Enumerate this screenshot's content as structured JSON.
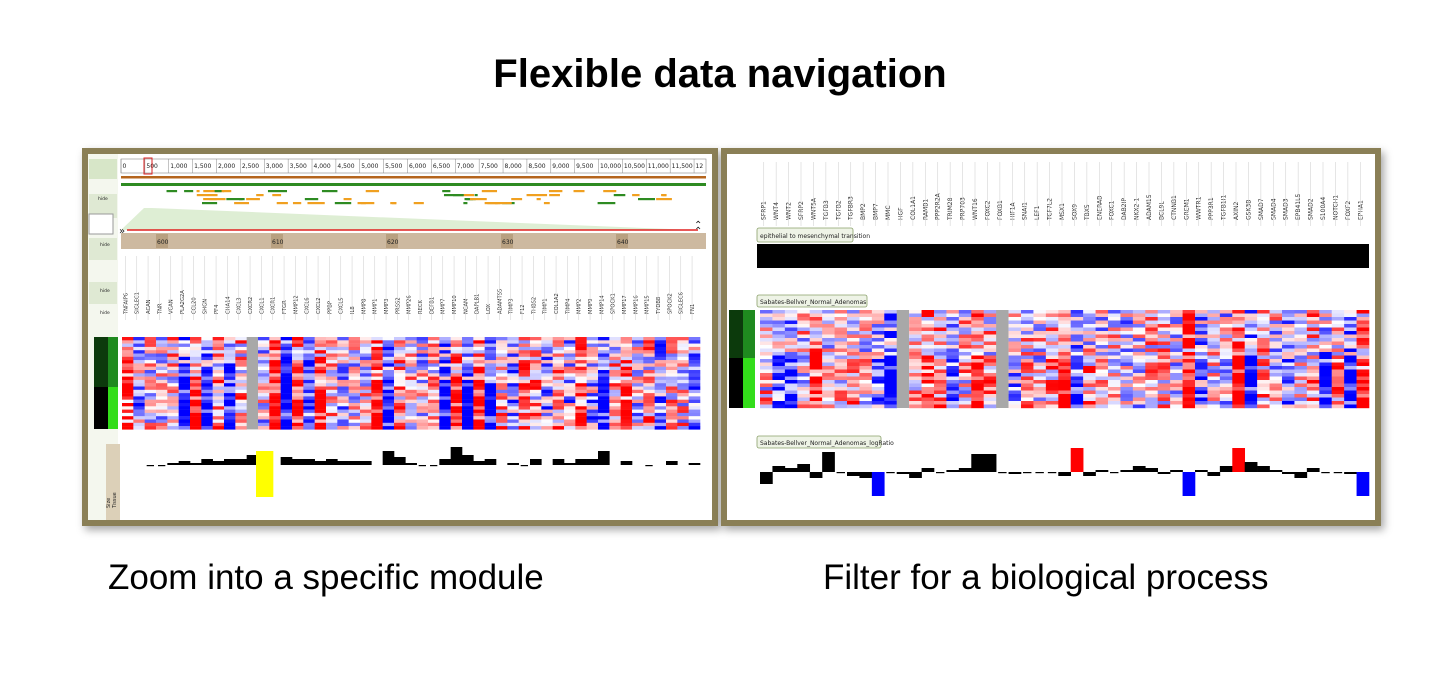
{
  "slide": {
    "title": "Flexible data navigation",
    "left_caption": "Zoom into a specific module",
    "right_caption": "Filter for a biological process"
  },
  "left_panel": {
    "ruler_ticks": [
      "0",
      "500",
      "1,000",
      "1,500",
      "2,000",
      "2,500",
      "3,000",
      "3,500",
      "4,000",
      "4,500",
      "5,000",
      "5,500",
      "6,000",
      "6,500",
      "7,000",
      "7,500",
      "8,000",
      "8,500",
      "9,000",
      "9,500",
      "10,000",
      "10,500",
      "11,000",
      "11,500",
      "12"
    ],
    "zoom_ticks": [
      "600",
      "610",
      "620",
      "630",
      "640"
    ],
    "side_labels": [
      "hide",
      "hide",
      "hide",
      "hide"
    ],
    "bottom_labels": [
      "Tissue",
      "Size"
    ],
    "genes": [
      "TNFAIP6",
      "SIGLEC1",
      "ACAN",
      "TNR",
      "VCAN",
      "PLA2G2A",
      "CCL20",
      "SHGN",
      "PF4",
      "CHA14",
      "CXCL3",
      "CXCR2",
      "CXCL1",
      "CXCR1",
      "FTGR",
      "MMP12",
      "CXCL6",
      "CXCL2",
      "PPBP",
      "CXCL5",
      "IL8",
      "MMP8",
      "MMP1",
      "MMP3",
      "PRSS2",
      "MMP26",
      "RECK",
      "DEFB1",
      "MMP7",
      "MMP10",
      "NCAM",
      "DAPLB1",
      "LOX",
      "ADAMTS5",
      "TIMP3",
      "F12",
      "THBS2",
      "TIMP1",
      "COL1A2",
      "TIMP4",
      "MMP2",
      "MMP9",
      "MMP14",
      "SPOCK1",
      "MMP17",
      "MMP16",
      "MMP15",
      "TYDB8",
      "SPOCK2",
      "SIGLEC6",
      "FN1"
    ]
  },
  "right_panel": {
    "genes": [
      "SFRP1",
      "WNT4",
      "WNT2",
      "SFRP2",
      "WNT5A",
      "TGFB3",
      "TGFB2",
      "TGFBR3",
      "BMP2",
      "BMP7",
      "MMC",
      "HGF",
      "COL1A1",
      "RAMB1",
      "PPP2R2A",
      "TRIM28",
      "PRP703",
      "WNT16",
      "FOXC2",
      "FOXB1",
      "HIF1A",
      "SNAI1",
      "LEF1",
      "TCF7L2",
      "MSX1",
      "SOX9",
      "TBX5",
      "ENERAB",
      "FOXC1",
      "DAB2IP",
      "NKX2-1",
      "ADAM15",
      "BCL9L",
      "CTNNB1",
      "GREM1",
      "WWTR1",
      "PPP3R1",
      "TGFB1I1",
      "AXIN2",
      "GSK3B",
      "SMAD7",
      "SMAD4",
      "SMAD3",
      "EPB41L5",
      "SMAD2",
      "S100A4",
      "NOTCH1",
      "FOXF2",
      "EPHA1"
    ],
    "process_label": "epithelial to mesenchymal transition",
    "heatmap_label": "Sabates-Bellver_Normal_Adenomas",
    "logratio_label": "Sabates-Bellver_Normal_Adenomas_logRatio"
  }
}
